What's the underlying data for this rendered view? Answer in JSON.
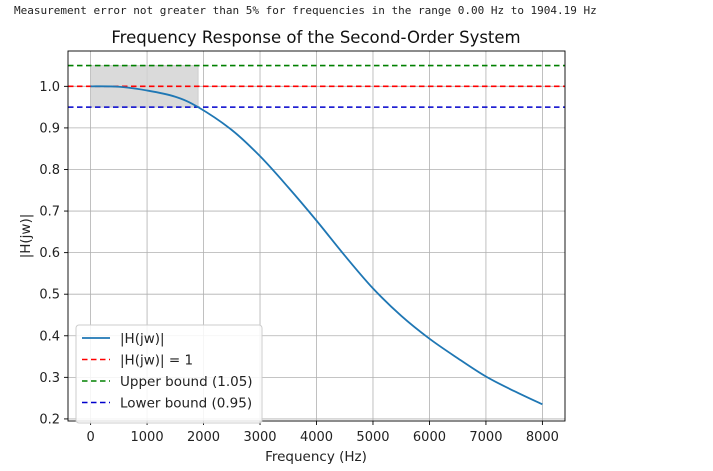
{
  "console_output": "Measurement error not greater than 5% for frequencies in the range 0.00 Hz to 1904.19 Hz",
  "chart_data": {
    "type": "line",
    "title": "Frequency Response of the Second-Order System",
    "xlabel": "Frequency (Hz)",
    "ylabel": "|H(jw)|",
    "xlim": [
      -400,
      8400
    ],
    "ylim": [
      0.195,
      1.085
    ],
    "xticks": [
      0,
      1000,
      2000,
      3000,
      4000,
      5000,
      6000,
      7000,
      8000
    ],
    "yticks": [
      0.2,
      0.3,
      0.4,
      0.5,
      0.6,
      0.7,
      0.8,
      0.9,
      1.0
    ],
    "grid": true,
    "legend_position": "lower-left",
    "shaded_region": {
      "x": [
        0,
        1904.19
      ],
      "y": [
        0.95,
        1.05
      ],
      "color": "#d3d3d3"
    },
    "series": [
      {
        "name": "|H(jw)|",
        "style": "solid",
        "color": "#1f77b4",
        "x": [
          0,
          500,
          1000,
          1500,
          1904.19,
          2500,
          3000,
          3500,
          4000,
          4500,
          5000,
          5500,
          6000,
          6500,
          7000,
          7500,
          8000
        ],
        "y": [
          1.0,
          0.999,
          0.99,
          0.975,
          0.95,
          0.895,
          0.832,
          0.757,
          0.677,
          0.593,
          0.514,
          0.448,
          0.393,
          0.346,
          0.302,
          0.267,
          0.235
        ]
      },
      {
        "name": "|H(jw)| = 1",
        "style": "dashed",
        "color": "#ff0000",
        "hline": 1.0
      },
      {
        "name": "Upper bound (1.05)",
        "style": "dashed",
        "color": "#008000",
        "hline": 1.05
      },
      {
        "name": "Lower bound (0.95)",
        "style": "dashed",
        "color": "#0000cc",
        "hline": 0.95
      }
    ]
  }
}
